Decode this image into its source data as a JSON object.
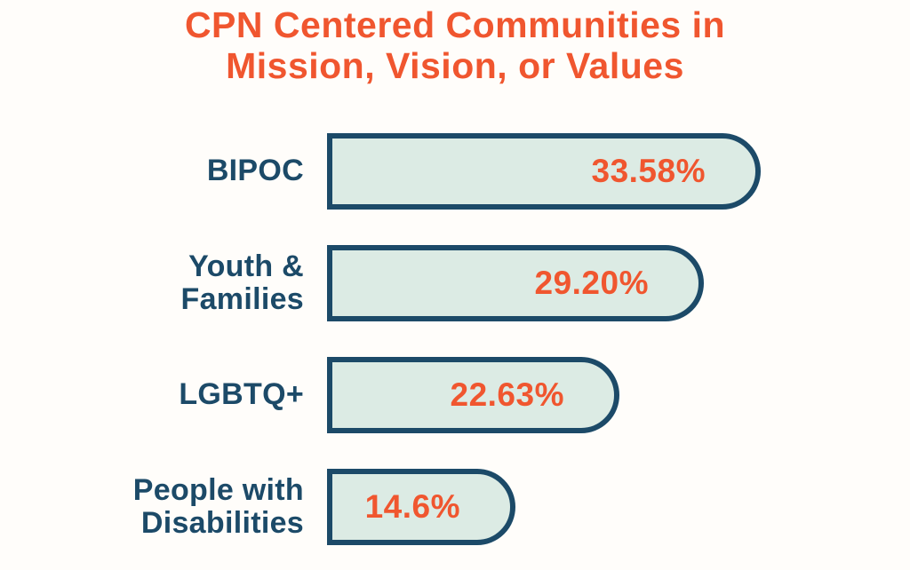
{
  "title": "CPN Centered Communities in\nMission, Vision, or Values",
  "colors": {
    "title_orange": "#f0562f",
    "label_navy": "#1c4a68",
    "bar_fill": "#dcebe4",
    "bar_border": "#1c4a68",
    "background": "#fffdfa"
  },
  "chart_data": {
    "type": "bar",
    "orientation": "horizontal",
    "title": "CPN Centered Communities in Mission, Vision, or Values",
    "categories": [
      "BIPOC",
      "Youth & Families",
      "LGBTQ+",
      "People with Disabilities"
    ],
    "values": [
      33.58,
      29.2,
      22.63,
      14.6
    ],
    "value_labels": [
      "33.58%",
      "29.20%",
      "22.63%",
      "14.6%"
    ],
    "xlim": [
      0,
      35
    ],
    "grid": false,
    "legend": "none",
    "rows": [
      {
        "label": "BIPOC",
        "label_display": "BIPOC",
        "value": 33.58,
        "value_label": "33.58%"
      },
      {
        "label": "Youth & Families",
        "label_display": "Youth &\nFamilies",
        "value": 29.2,
        "value_label": "29.20%"
      },
      {
        "label": "LGBTQ+",
        "label_display": "LGBTQ+",
        "value": 22.63,
        "value_label": "22.63%"
      },
      {
        "label": "People with Disabilities",
        "label_display": "People with\nDisabilities",
        "value": 14.6,
        "value_label": "14.6%"
      }
    ]
  }
}
